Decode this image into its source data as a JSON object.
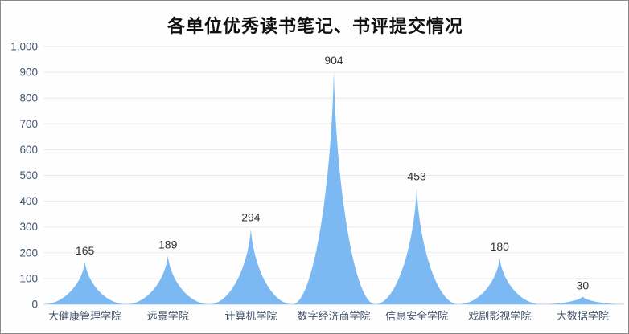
{
  "chart_data": {
    "type": "area",
    "title": "各单位优秀读书笔记、书评提交情况",
    "categories": [
      "大健康管理学院",
      "远景学院",
      "计算机学院",
      "数字经济商学院",
      "信息安全学院",
      "戏剧影视学院",
      "大数据学院"
    ],
    "values": [
      165,
      189,
      294,
      904,
      453,
      180,
      30
    ],
    "data_labels": [
      "165",
      "189",
      "294",
      "904",
      "453",
      "180",
      "30"
    ],
    "xlabel": "",
    "ylabel": "",
    "ylim": [
      0,
      1000
    ],
    "ytick_step": 100,
    "ytick_labels": [
      "0",
      "100",
      "200",
      "300",
      "400",
      "500",
      "600",
      "700",
      "800",
      "900",
      "1,000"
    ],
    "grid": true,
    "legend_position": "none",
    "colors": {
      "area_fill": "#7cb9f2",
      "gridline": "#eaeaea",
      "axis_line": "#d6dde5",
      "tick_text": "#44546a",
      "data_label_text": "#333333",
      "title_text": "#111111",
      "frame_border": "#8a8a8a"
    }
  }
}
